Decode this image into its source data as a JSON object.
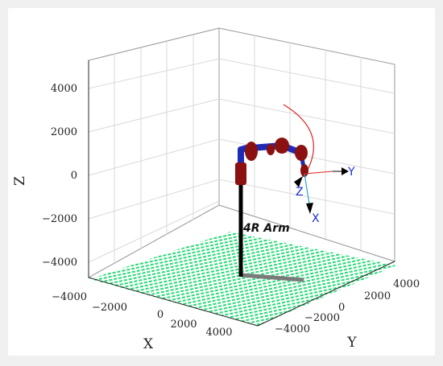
{
  "figure": {
    "background": "#f0f0f0",
    "axes": {
      "z_label": "Z",
      "x_label": "X",
      "y_label": "Y",
      "z_ticks": [
        "4000",
        "2000",
        "0",
        "−2000",
        "−4000"
      ],
      "x_ticks": [
        "−4000",
        "−2000",
        "0",
        "2000",
        "4000"
      ],
      "y_ticks": [
        "−4000",
        "−2000",
        "0",
        "2000",
        "4000"
      ],
      "xlim": [
        -5000,
        5000
      ],
      "ylim": [
        -5000,
        5000
      ],
      "zlim": [
        -5000,
        5000
      ],
      "grid": true
    },
    "robot": {
      "label": "4R Arm",
      "link_color": "#1f2bb5",
      "joint_color": "#8b1010",
      "base_color": "#000000",
      "shadow_color": "#7a7a7a",
      "trajectory_color": "#e02020",
      "floor_color": "#19d96e"
    },
    "end_frame": {
      "x_label": "X",
      "y_label": "Y",
      "z_label": "Z",
      "label_color": "#1a2fd6"
    }
  }
}
